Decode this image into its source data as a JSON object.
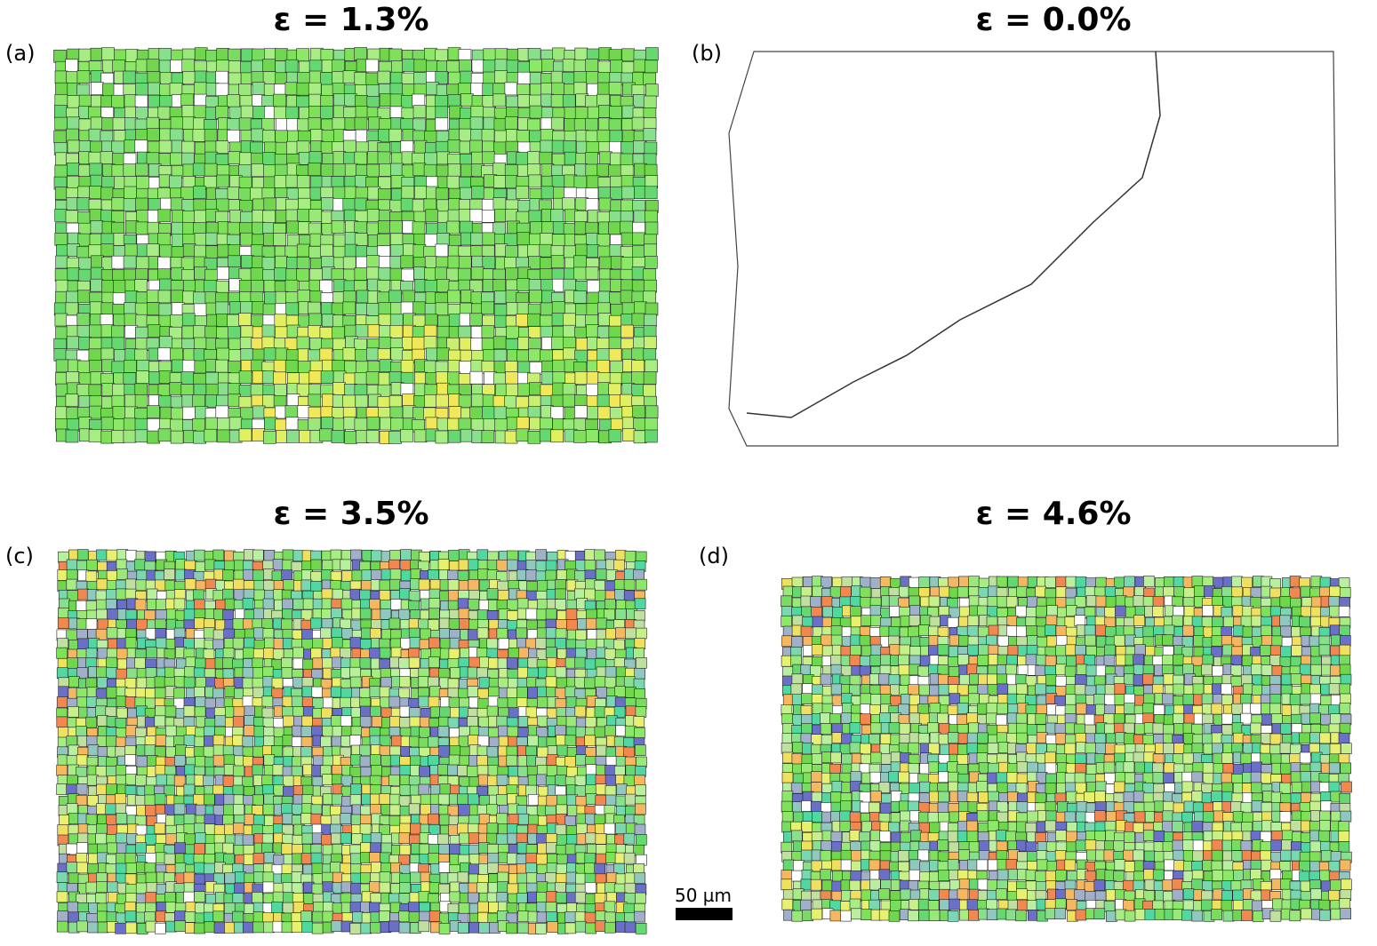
{
  "panels": [
    {
      "label": "(a)",
      "title": "ε = 1.3%"
    },
    {
      "label": "(b)",
      "title": "ε = 0.0%"
    },
    {
      "label": "(c)",
      "title": "ε = 3.5%"
    },
    {
      "label": "(d)",
      "title": "ε = 4.6%"
    }
  ],
  "scale_bar": {
    "label": "50 µm"
  }
}
